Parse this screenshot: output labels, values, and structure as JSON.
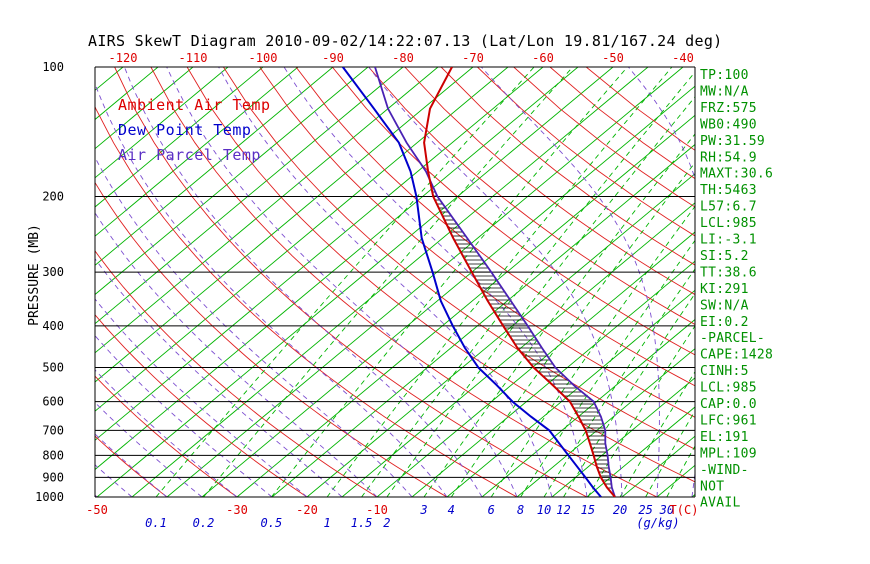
{
  "title": "AIRS SkewT Diagram 2010-09-02/14:22:07.13 (Lat/Lon 19.81/167.24 deg)",
  "legend": [
    {
      "label": "Ambient Air Temp",
      "color": "#dd0000"
    },
    {
      "label": "Dew Point Temp",
      "color": "#0000cc"
    },
    {
      "label": "Air Parcel Temp",
      "color": "#5a2fc4"
    }
  ],
  "y_axis": {
    "label": "PRESSURE (MB)",
    "ticks": [
      100,
      200,
      300,
      400,
      500,
      600,
      700,
      800,
      900,
      1000
    ]
  },
  "x_axis": {
    "top_ticks": [
      -120,
      -110,
      -100,
      -90,
      -80,
      -70,
      -60,
      -50,
      -40
    ],
    "bottom_temp_ticks": [
      -50,
      -30,
      -20,
      -10
    ],
    "temp_unit": "T(C)",
    "mixing_unit": "(g/kg)"
  },
  "stats_panel": {
    "lines": [
      "TP:100",
      "MW:N/A",
      "FRZ:575",
      "WB0:490",
      "PW:31.59",
      "RH:54.9",
      "MAXT:30.6",
      "TH:5463",
      "L57:6.7",
      "LCL:985",
      "LI:-3.1",
      "SI:5.2",
      "TT:38.6",
      "KI:291",
      "SW:N/A",
      "EI:0.2",
      "-PARCEL-",
      "CAPE:1428",
      "CINH:5",
      "LCL:985",
      "CAP:0.0",
      "LFC:961",
      "EL:191",
      "MPL:109",
      "-WIND-",
      "NOT",
      "AVAIL"
    ]
  },
  "colors": {
    "isotherm": "#00b400",
    "dry_adiabat": "#e02020",
    "moist_adiabat": "#7d4fd0",
    "tick_red": "#dd0000",
    "tick_blue": "#0000cc",
    "stats": "#009100",
    "grid": "#000000"
  },
  "chart_data": {
    "type": "line",
    "title": "AIRS SkewT Diagram 2010-09-02/14:22:07.13 (Lat/Lon 19.81/167.24 deg)",
    "xlabel": "Temperature T(C), mixing ratio (g/kg)",
    "ylabel": "PRESSURE (MB)",
    "pressure_hpa": [
      1000,
      950,
      900,
      850,
      800,
      750,
      700,
      650,
      600,
      550,
      500,
      450,
      400,
      350,
      300,
      250,
      200,
      175,
      150,
      125,
      100
    ],
    "series": [
      {
        "name": "Ambient Air Temp",
        "color": "#cc0000",
        "values_c": [
          24.0,
          21.2,
          18.6,
          16.2,
          13.8,
          11.2,
          8.4,
          5.0,
          1.2,
          -4.0,
          -9.8,
          -15.5,
          -21.3,
          -27.8,
          -35.0,
          -43.5,
          -53.5,
          -58.5,
          -64.0,
          -69.0,
          -73.0
        ]
      },
      {
        "name": "Dew Point Temp",
        "color": "#0000cc",
        "values_c": [
          22.0,
          19.2,
          16.4,
          13.4,
          10.2,
          6.8,
          3.2,
          -1.8,
          -7.0,
          -12.0,
          -17.7,
          -23.0,
          -28.5,
          -34.5,
          -40.6,
          -48.0,
          -55.9,
          -61.0,
          -67.6,
          -77.0,
          -88.6
        ]
      },
      {
        "name": "Air Parcel Temp",
        "color": "#4a22b4",
        "values_c": [
          24.0,
          21.9,
          20.0,
          17.9,
          15.8,
          13.4,
          11.2,
          8.2,
          4.6,
          -1.0,
          -6.7,
          -12.0,
          -17.8,
          -24.5,
          -32.2,
          -41.5,
          -52.9,
          -58.8,
          -66.5,
          -75.0,
          -84.0
        ]
      }
    ],
    "background": {
      "isotherms_c": {
        "min": -130,
        "max": 45,
        "step": 5
      },
      "dry_adiabats_theta_c": {
        "min": -50,
        "max": 150,
        "step": 10
      },
      "moist_adiabats_start_c": {
        "min": -50,
        "max": 35,
        "step": 5
      },
      "mixing_ratio_g_kg": [
        0.1,
        0.2,
        0.5,
        1,
        1.5,
        2,
        3,
        4,
        6,
        8,
        10,
        12,
        15,
        20,
        25,
        30
      ],
      "pressure_lines_hpa": [
        100,
        200,
        300,
        400,
        500,
        600,
        700,
        800,
        900,
        1000
      ]
    },
    "cape_region": {
      "lfc_hpa": 961,
      "el_hpa": 191
    },
    "axis": {
      "pressure_range_hpa": [
        100,
        1000
      ],
      "bottom_temp_range_c": [
        -50,
        35
      ],
      "pressure_scale": "log",
      "skewed": true
    }
  }
}
